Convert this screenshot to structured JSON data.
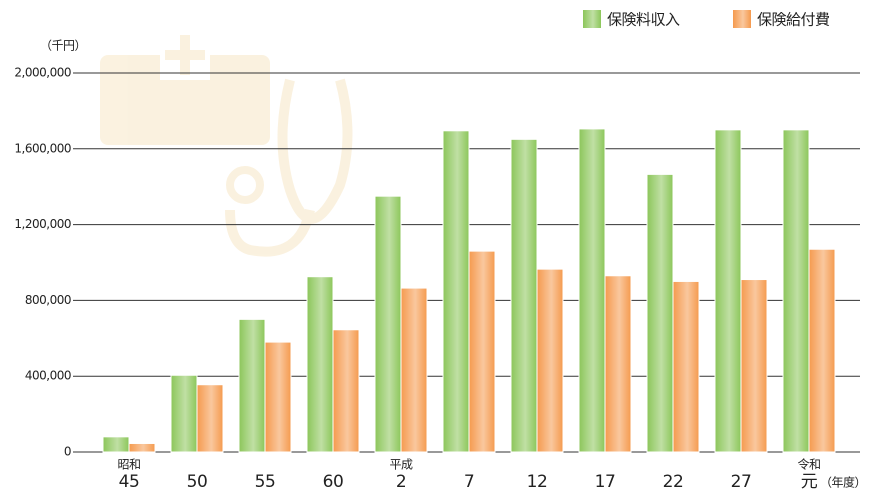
{
  "chart_data": {
    "type": "bar",
    "y_unit": "（千円）",
    "x_unit": "（年度）",
    "categories": [
      "45",
      "50",
      "55",
      "60",
      "2",
      "7",
      "12",
      "17",
      "22",
      "27",
      "元"
    ],
    "category_eras": [
      "昭和",
      null,
      null,
      null,
      "平成",
      null,
      null,
      null,
      null,
      null,
      "令和"
    ],
    "series": [
      {
        "name": "保険料収入",
        "color": "#8cc65a",
        "values": [
          80000,
          405000,
          700000,
          925000,
          1350000,
          1695000,
          1650000,
          1705000,
          1465000,
          1700000,
          1700000
        ]
      },
      {
        "name": "保険給付費",
        "color": "#f59a4e",
        "values": [
          45000,
          355000,
          580000,
          645000,
          865000,
          1060000,
          965000,
          930000,
          900000,
          910000,
          1070000
        ]
      }
    ],
    "ylim": [
      0,
      2000000
    ],
    "yticks": [
      0,
      {
        "value": 400000,
        "label": "400,000"
      },
      {
        "value": 800000,
        "label": "800,000"
      },
      {
        "value": 1200000,
        "label": "1,200,000"
      },
      {
        "value": 1600000,
        "label": "1,600,000"
      },
      {
        "value": 2000000,
        "label": "2,000,000"
      }
    ],
    "grid": true,
    "legend": "top-right"
  }
}
